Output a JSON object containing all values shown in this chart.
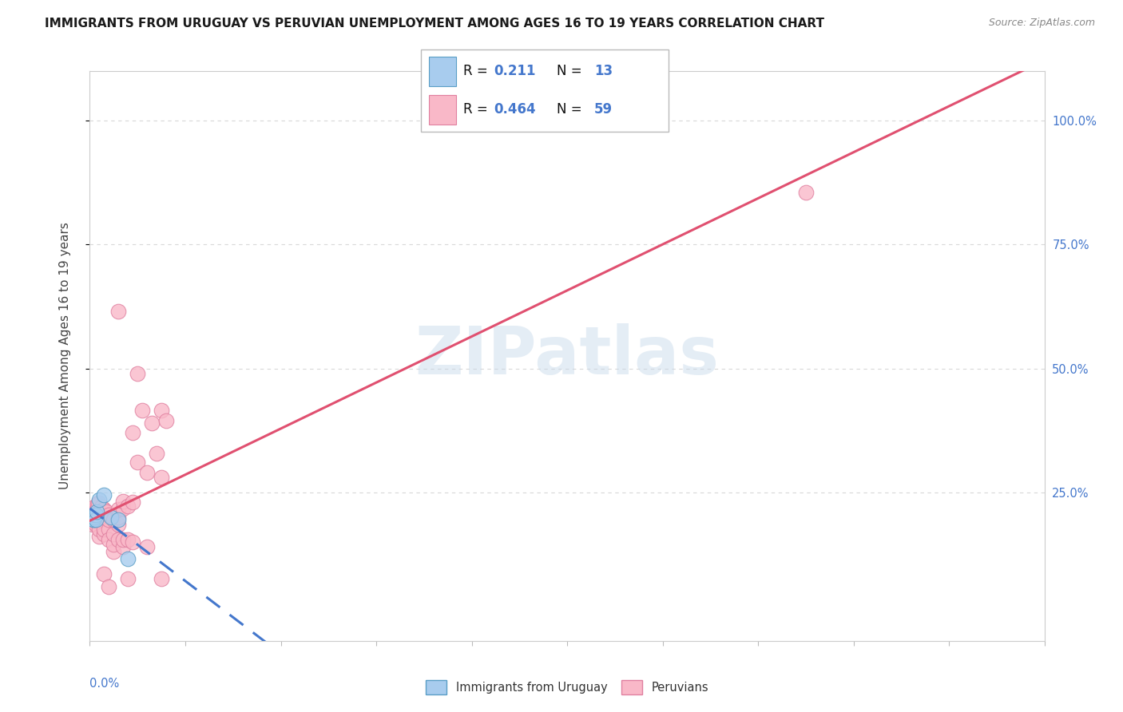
{
  "title": "IMMIGRANTS FROM URUGUAY VS PERUVIAN UNEMPLOYMENT AMONG AGES 16 TO 19 YEARS CORRELATION CHART",
  "source": "Source: ZipAtlas.com",
  "ylabel": "Unemployment Among Ages 16 to 19 years",
  "ytick_labels": [
    "25.0%",
    "50.0%",
    "75.0%",
    "100.0%"
  ],
  "ytick_vals": [
    0.25,
    0.5,
    0.75,
    1.0
  ],
  "xlim": [
    0.0,
    0.2
  ],
  "ylim": [
    -0.05,
    1.1
  ],
  "scatter_color_uruguay": "#a8ccee",
  "scatter_color_peru": "#f9b8c8",
  "scatter_edge_uruguay": "#5a9ec6",
  "scatter_edge_peru": "#e080a0",
  "trend_color_uruguay": "#4477cc",
  "trend_color_peru": "#e05070",
  "background_color": "#ffffff",
  "grid_color": "#d8d8d8",
  "watermark_text": "ZIPatlas",
  "title_fontsize": 11,
  "axis_label_fontsize": 11,
  "tick_label_fontsize": 10.5,
  "legend_fontsize": 12,
  "legend_r1_R": "0.211",
  "legend_r1_N": "13",
  "legend_r2_R": "0.464",
  "legend_r2_N": "59",
  "uruguay_points": [
    [
      0.0006,
      0.2
    ],
    [
      0.0007,
      0.195
    ],
    [
      0.0008,
      0.195
    ],
    [
      0.0009,
      0.2
    ],
    [
      0.001,
      0.205
    ],
    [
      0.0012,
      0.205
    ],
    [
      0.0013,
      0.195
    ],
    [
      0.0015,
      0.21
    ],
    [
      0.002,
      0.235
    ],
    [
      0.003,
      0.245
    ],
    [
      0.0045,
      0.2
    ],
    [
      0.006,
      0.195
    ],
    [
      0.008,
      0.115
    ]
  ],
  "peru_points": [
    [
      0.0005,
      0.19
    ],
    [
      0.0006,
      0.185
    ],
    [
      0.0007,
      0.195
    ],
    [
      0.0008,
      0.2
    ],
    [
      0.0009,
      0.21
    ],
    [
      0.001,
      0.215
    ],
    [
      0.001,
      0.22
    ],
    [
      0.0012,
      0.185
    ],
    [
      0.0013,
      0.2
    ],
    [
      0.0015,
      0.215
    ],
    [
      0.0016,
      0.225
    ],
    [
      0.0018,
      0.228
    ],
    [
      0.002,
      0.16
    ],
    [
      0.002,
      0.175
    ],
    [
      0.002,
      0.195
    ],
    [
      0.002,
      0.21
    ],
    [
      0.0025,
      0.22
    ],
    [
      0.003,
      0.165
    ],
    [
      0.003,
      0.175
    ],
    [
      0.003,
      0.2
    ],
    [
      0.003,
      0.215
    ],
    [
      0.003,
      0.085
    ],
    [
      0.0035,
      0.21
    ],
    [
      0.004,
      0.175
    ],
    [
      0.004,
      0.06
    ],
    [
      0.004,
      0.155
    ],
    [
      0.004,
      0.195
    ],
    [
      0.004,
      0.205
    ],
    [
      0.005,
      0.13
    ],
    [
      0.005,
      0.145
    ],
    [
      0.005,
      0.165
    ],
    [
      0.005,
      0.195
    ],
    [
      0.006,
      0.155
    ],
    [
      0.006,
      0.185
    ],
    [
      0.006,
      0.2
    ],
    [
      0.006,
      0.215
    ],
    [
      0.006,
      0.615
    ],
    [
      0.007,
      0.14
    ],
    [
      0.007,
      0.155
    ],
    [
      0.007,
      0.218
    ],
    [
      0.007,
      0.232
    ],
    [
      0.008,
      0.075
    ],
    [
      0.008,
      0.155
    ],
    [
      0.008,
      0.222
    ],
    [
      0.009,
      0.15
    ],
    [
      0.009,
      0.23
    ],
    [
      0.009,
      0.37
    ],
    [
      0.01,
      0.31
    ],
    [
      0.01,
      0.49
    ],
    [
      0.011,
      0.415
    ],
    [
      0.012,
      0.14
    ],
    [
      0.012,
      0.29
    ],
    [
      0.013,
      0.39
    ],
    [
      0.014,
      0.328
    ],
    [
      0.015,
      0.075
    ],
    [
      0.015,
      0.28
    ],
    [
      0.015,
      0.415
    ],
    [
      0.016,
      0.395
    ],
    [
      0.15,
      0.855
    ]
  ]
}
